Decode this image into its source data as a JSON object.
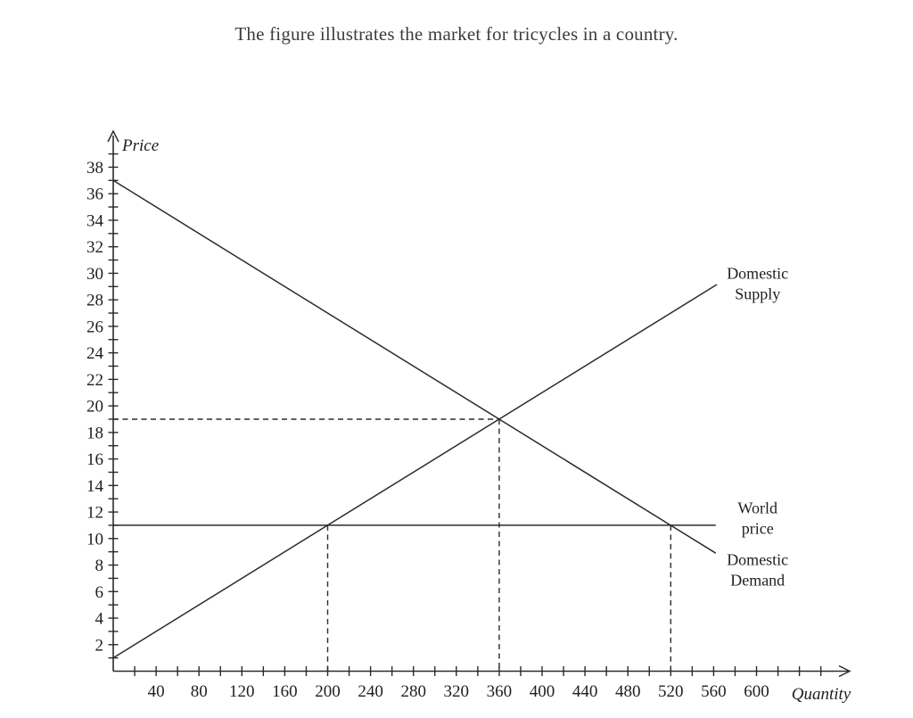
{
  "page": {
    "title": "The figure illustrates the market for tricycles in a country."
  },
  "colors": {
    "line": "#2b2b2b",
    "axis": "#2b2b2b",
    "text": "#1f1f1f",
    "title": "#3c3c3c"
  },
  "chart_data": {
    "type": "line",
    "title": "The figure illustrates the market for tricycles in a country.",
    "xlabel": "Quantity",
    "ylabel": "Price",
    "xlim": [
      0,
      685
    ],
    "ylim": [
      0,
      40.5
    ],
    "grid": false,
    "x_axis": {
      "minor_tick_step": 20,
      "minor_tick_min": 20,
      "minor_tick_max": 660,
      "labels": [
        40,
        80,
        120,
        160,
        200,
        240,
        280,
        320,
        360,
        400,
        440,
        480,
        520,
        560,
        600
      ]
    },
    "y_axis": {
      "minor_tick_step": 1,
      "minor_tick_min": 1,
      "minor_tick_max": 39,
      "labels": [
        2,
        4,
        6,
        8,
        10,
        12,
        14,
        16,
        18,
        20,
        22,
        24,
        26,
        28,
        30,
        32,
        34,
        36,
        38
      ]
    },
    "series": [
      {
        "id": "domestic-demand-line",
        "name": "Domestic Demand",
        "style": "solid",
        "points": [
          [
            0,
            37
          ],
          [
            562,
            8.9
          ]
        ]
      },
      {
        "id": "domestic-supply-line",
        "name": "Domestic Supply",
        "style": "solid",
        "points": [
          [
            0,
            1
          ],
          [
            563,
            29.15
          ]
        ]
      },
      {
        "id": "world-price-line",
        "name": "World price",
        "style": "solid",
        "points": [
          [
            0,
            11
          ],
          [
            562,
            11
          ]
        ]
      }
    ],
    "guides": [
      {
        "id": "equilibrium-price-guide",
        "style": "dashed",
        "points": [
          [
            0,
            19
          ],
          [
            360,
            19
          ]
        ]
      },
      {
        "id": "equilibrium-quantity-guide",
        "style": "dashed",
        "points": [
          [
            360,
            19
          ],
          [
            360,
            0
          ]
        ]
      },
      {
        "id": "supply-at-world-price-guide",
        "style": "dashed",
        "points": [
          [
            200,
            11
          ],
          [
            200,
            0
          ]
        ]
      },
      {
        "id": "demand-at-world-price-guide",
        "style": "dashed",
        "points": [
          [
            520,
            11
          ],
          [
            520,
            0
          ]
        ]
      }
    ],
    "key_points": {
      "equilibrium": {
        "quantity": 360,
        "price": 19
      },
      "world_price": 11,
      "domestic_supply_quantity_at_world_price": 200,
      "domestic_demand_quantity_at_world_price": 520
    },
    "annotations": [
      {
        "id": "domestic-supply-label",
        "lines": [
          "Domestic",
          "Supply"
        ],
        "q": 601,
        "p": 29.6
      },
      {
        "id": "world-price-label",
        "lines": [
          "World",
          "price"
        ],
        "q": 601,
        "p": 11.9
      },
      {
        "id": "domestic-demand-label",
        "lines": [
          "Domestic",
          "Demand"
        ],
        "q": 601,
        "p": 8.0
      }
    ]
  }
}
